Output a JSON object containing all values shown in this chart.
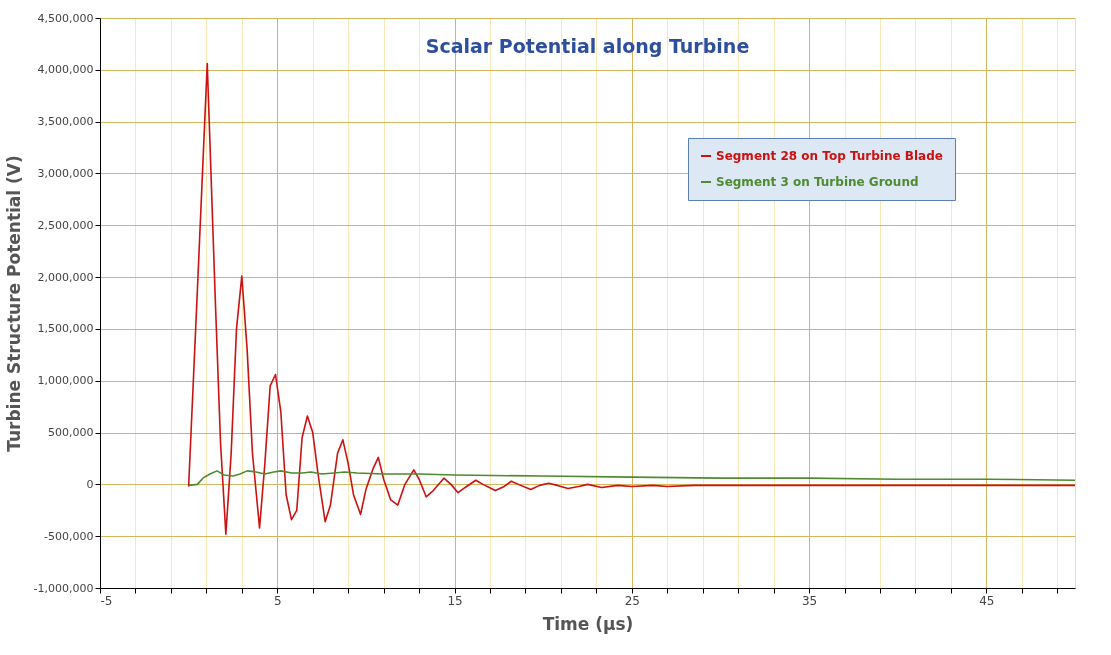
{
  "chart_data": {
    "type": "line",
    "title": "Scalar Potential along Turbine",
    "xlabel": "Time (µs)",
    "ylabel": "Turbine Structure Potential (V)",
    "xlim": [
      -5,
      50
    ],
    "ylim": [
      -1000000,
      4500000
    ],
    "xticks": [
      -5,
      {
        "value": -3,
        "label": null
      },
      {
        "value": -1,
        "label": null
      },
      {
        "value": 1,
        "label": null
      },
      {
        "value": 3,
        "label": null
      },
      5,
      {
        "value": 7,
        "label": null
      },
      {
        "value": 9,
        "label": null
      },
      {
        "value": 11,
        "label": null
      },
      {
        "value": 13,
        "label": null
      },
      15,
      {
        "value": 17,
        "label": null
      },
      {
        "value": 19,
        "label": null
      },
      {
        "value": 21,
        "label": null
      },
      {
        "value": 23,
        "label": null
      },
      25,
      {
        "value": 27,
        "label": null
      },
      {
        "value": 29,
        "label": null
      },
      {
        "value": 31,
        "label": null
      },
      {
        "value": 33,
        "label": null
      },
      35,
      {
        "value": 37,
        "label": null
      },
      {
        "value": 39,
        "label": null
      },
      {
        "value": 41,
        "label": null
      },
      {
        "value": 43,
        "label": null
      },
      45,
      {
        "value": 47,
        "label": null
      },
      {
        "value": 49,
        "label": null
      }
    ],
    "yticks": [
      {
        "value": -1000000,
        "label": "-1,000,000"
      },
      {
        "value": -500000,
        "label": "-500,000"
      },
      0,
      {
        "value": 500000,
        "label": "500,000"
      },
      {
        "value": 1000000,
        "label": "1,000,000"
      },
      {
        "value": 1500000,
        "label": "1,500,000"
      },
      {
        "value": 2000000,
        "label": "2,000,000"
      },
      {
        "value": 2500000,
        "label": "2,500,000"
      },
      {
        "value": 3000000,
        "label": "3,000,000"
      },
      {
        "value": 3500000,
        "label": "3,500,000"
      },
      {
        "value": 4000000,
        "label": "4,000,000"
      },
      {
        "value": 4500000,
        "label": "4,500,000"
      }
    ],
    "grid": true,
    "legend": "top right",
    "marker": "none",
    "line_style": "solid",
    "series": [
      {
        "name": "Segment 28 on Top Turbine Blade",
        "color": "#cc1111",
        "x": [
          0,
          0.5,
          1.05,
          1.5,
          1.8,
          2.1,
          2.4,
          2.7,
          3.0,
          3.3,
          3.6,
          4.0,
          4.3,
          4.6,
          4.9,
          5.2,
          5.5,
          5.8,
          6.1,
          6.4,
          6.7,
          7.0,
          7.3,
          7.7,
          8.0,
          8.4,
          8.7,
          9.0,
          9.3,
          9.7,
          10.0,
          10.4,
          10.7,
          11.0,
          11.4,
          11.8,
          12.2,
          12.7,
          13.0,
          13.4,
          13.8,
          14.4,
          14.8,
          15.2,
          15.6,
          16.2,
          16.6,
          17.3,
          17.8,
          18.2,
          18.6,
          19.3,
          19.8,
          20.3,
          20.8,
          21.4,
          22.0,
          22.5,
          23.3,
          24.2,
          25.0,
          26.2,
          27.0,
          28.5,
          30,
          35,
          40,
          45,
          50
        ],
        "values": [
          -20000,
          1900000,
          4060000,
          1800000,
          400000,
          -480000,
          300000,
          1500000,
          2010000,
          1300000,
          300000,
          -420000,
          200000,
          950000,
          1060000,
          700000,
          -100000,
          -340000,
          -250000,
          450000,
          660000,
          500000,
          100000,
          -360000,
          -200000,
          300000,
          430000,
          200000,
          -100000,
          -290000,
          -50000,
          150000,
          260000,
          50000,
          -150000,
          -200000,
          0,
          140000,
          50000,
          -120000,
          -60000,
          60000,
          0,
          -80000,
          -30000,
          40000,
          0,
          -60000,
          -20000,
          30000,
          0,
          -50000,
          -10000,
          10000,
          -10000,
          -40000,
          -20000,
          0,
          -30000,
          -10000,
          -20000,
          -10000,
          -20000,
          -10000,
          -10000,
          -10000,
          -10000,
          -10000,
          -10000
        ]
      },
      {
        "name": "Segment 3 on Turbine Ground",
        "color": "#4e8a2e",
        "x": [
          0,
          0.5,
          0.8,
          1.2,
          1.6,
          2.0,
          2.5,
          2.9,
          3.3,
          3.8,
          4.3,
          4.8,
          5.2,
          5.8,
          6.4,
          6.9,
          7.5,
          8.2,
          8.8,
          9.5,
          11,
          13,
          15,
          20,
          25,
          30,
          35,
          40,
          45,
          50
        ],
        "values": [
          -10000,
          0,
          60000,
          100000,
          130000,
          90000,
          80000,
          100000,
          130000,
          120000,
          100000,
          120000,
          130000,
          110000,
          110000,
          120000,
          100000,
          110000,
          120000,
          110000,
          100000,
          100000,
          90000,
          80000,
          70000,
          60000,
          60000,
          50000,
          50000,
          40000
        ]
      }
    ]
  }
}
